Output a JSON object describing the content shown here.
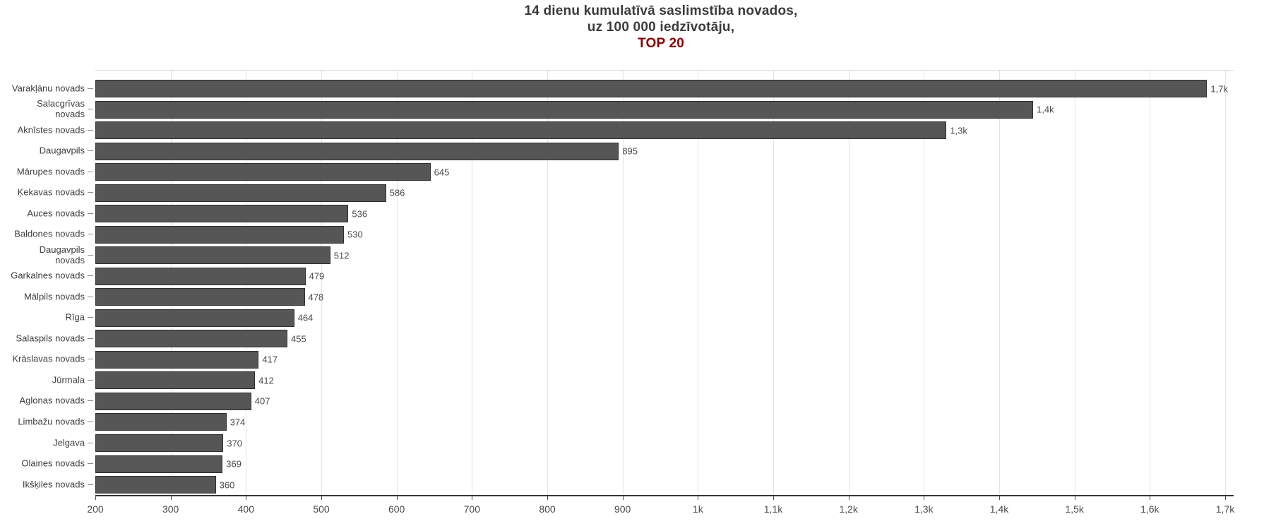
{
  "chart_data": {
    "type": "bar",
    "orientation": "horizontal",
    "title_lines": [
      "14 dienu kumulatīvā saslimstība novados,",
      "uz 100 000 iedzīvotāju,",
      "TOP 20"
    ],
    "categories": [
      "Varakļānu novads",
      "Salacgrīvas\nnovads",
      "Aknīstes novads",
      "Daugavpils",
      "Mārupes novads",
      "Ķekavas novads",
      "Auces novads",
      "Baldones novads",
      "Daugavpils\nnovads",
      "Garkalnes novads",
      "Mālpils novads",
      "Rīga",
      "Salaspils novads",
      "Krāslavas novads",
      "Jūrmala",
      "Aglonas novads",
      "Limbažu novads",
      "Jelgava",
      "Olaines novads",
      "Ikšķiles novads"
    ],
    "values": [
      1676,
      1445,
      1330,
      895,
      645,
      586,
      536,
      530,
      512,
      479,
      478,
      464,
      455,
      417,
      412,
      407,
      374,
      370,
      369,
      360
    ],
    "value_labels": [
      "1,7k",
      "1,4k",
      "1,3k",
      "895",
      "645",
      "586",
      "536",
      "530",
      "512",
      "479",
      "478",
      "464",
      "455",
      "417",
      "412",
      "407",
      "374",
      "370",
      "369",
      "360"
    ],
    "xlabel": "",
    "ylabel": "",
    "xlim": [
      200,
      1750
    ],
    "x_tick_values": [
      200,
      300,
      400,
      500,
      600,
      700,
      800,
      900,
      1000,
      1100,
      1200,
      1300,
      1400,
      1500,
      1600,
      1700
    ],
    "x_tick_labels": [
      "200",
      "300",
      "400",
      "500",
      "600",
      "700",
      "800",
      "900",
      "1k",
      "1,1k",
      "1,2k",
      "1,3k",
      "1,4k",
      "1,5k",
      "1,6k",
      "1,7k"
    ],
    "grid": true,
    "legend": false,
    "colors": {
      "bar_fill": "#565656",
      "bar_border": "#2e2e2e",
      "title": "#3b3b3b",
      "accent_red": "#8b0000",
      "gridline": "#e4e4e4",
      "axis_line": "#333333",
      "tick_text": "#4a4a4a",
      "category_text": "#3d3d3d"
    }
  }
}
